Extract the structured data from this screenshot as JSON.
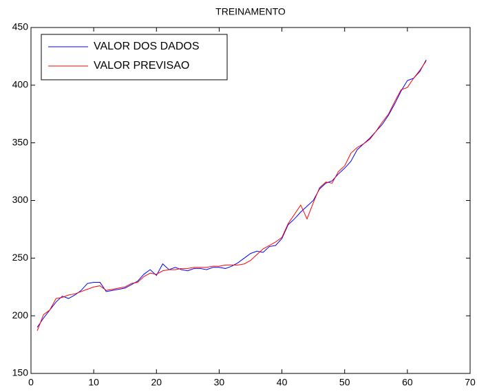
{
  "chart_data": {
    "type": "line",
    "title": "TREINAMENTO",
    "x": [
      1,
      2,
      3,
      4,
      5,
      6,
      7,
      8,
      9,
      10,
      11,
      12,
      13,
      14,
      15,
      16,
      17,
      18,
      19,
      20,
      21,
      22,
      23,
      24,
      25,
      26,
      27,
      28,
      29,
      30,
      31,
      32,
      33,
      34,
      35,
      36,
      37,
      38,
      39,
      40,
      41,
      42,
      43,
      44,
      45,
      46,
      47,
      48,
      49,
      50,
      51,
      52,
      53,
      54,
      55,
      56,
      57,
      58,
      59,
      60,
      61,
      62,
      63
    ],
    "series": [
      {
        "name": "VALOR DOS DADOS",
        "color": "#0000ff",
        "values": [
          190,
          198,
          205,
          212,
          217,
          215,
          218,
          222,
          228,
          229,
          229,
          221,
          222,
          223,
          224,
          227,
          230,
          236,
          240,
          235,
          245,
          240,
          242,
          240,
          239,
          241,
          241,
          240,
          242,
          242,
          241,
          243,
          246,
          250,
          254,
          256,
          255,
          260,
          261,
          267,
          279,
          284,
          290,
          295,
          300,
          310,
          315,
          317,
          323,
          328,
          334,
          344,
          349,
          354,
          360,
          366,
          374,
          384,
          395,
          404,
          406,
          412,
          422
        ]
      },
      {
        "name": "VALOR PREVISAO",
        "color": "#ff0000",
        "values": [
          187,
          201,
          205,
          215,
          216,
          218,
          219,
          221,
          223,
          225,
          226,
          222,
          223,
          224,
          225,
          228,
          229,
          234,
          237,
          236,
          239,
          240,
          240,
          241,
          241,
          242,
          242,
          242,
          243,
          243,
          244,
          244,
          244,
          245,
          248,
          253,
          258,
          261,
          264,
          268,
          280,
          288,
          296,
          284,
          298,
          311,
          316,
          315,
          325,
          330,
          341,
          346,
          349,
          353,
          360,
          368,
          375,
          386,
          396,
          398,
          406,
          413,
          421
        ]
      }
    ],
    "xlim": [
      0,
      70
    ],
    "xticks": [
      0,
      10,
      20,
      30,
      40,
      50,
      60,
      70
    ],
    "ylim": [
      150,
      450
    ],
    "yticks": [
      150,
      200,
      250,
      300,
      350,
      400,
      450
    ],
    "legend": "upper left"
  }
}
